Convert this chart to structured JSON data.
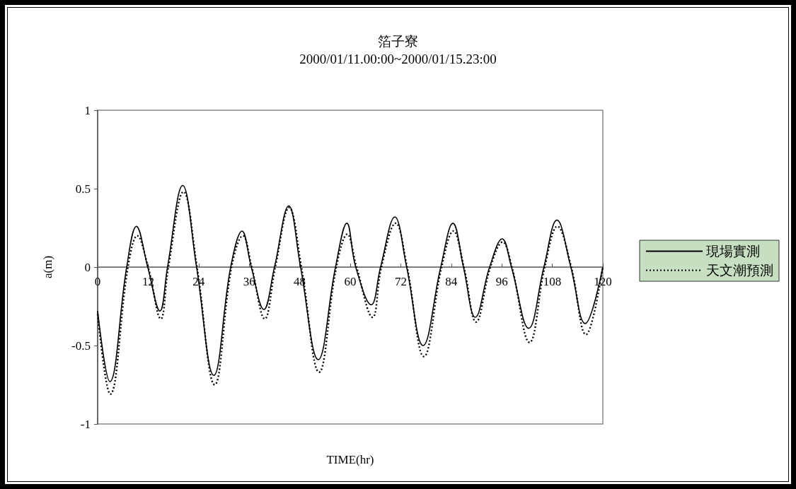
{
  "chart_data": {
    "type": "line",
    "title": "箔子寮",
    "subtitle": "2000/01/11.00:00~2000/01/15.23:00",
    "xlabel": "TIME(hr)",
    "ylabel": "a(m)",
    "xlim": [
      0,
      120
    ],
    "xticks": [
      0,
      12,
      24,
      36,
      48,
      60,
      72,
      84,
      96,
      108,
      120
    ],
    "ylim": [
      -1,
      1
    ],
    "yticks": [
      -1,
      -0.5,
      0,
      0.5,
      1
    ],
    "grid": false,
    "legend": "right",
    "marker": "none",
    "series": [
      {
        "name": "現場實測",
        "color": "#000000",
        "line_style": "solid",
        "x": [
          0,
          2.9,
          6.9,
          9.2,
          11.9,
          14.8,
          16.6,
          20.2,
          23.5,
          27.6,
          31.6,
          34.3,
          36.5,
          39.5,
          42,
          45.4,
          48.2,
          52.4,
          56.5,
          59.2,
          61.3,
          65,
          67.2,
          70.6,
          73.4,
          77.3,
          81.5,
          84.4,
          86.9,
          89.7,
          93.1,
          96.1,
          98.3,
          102.4,
          106,
          109.1,
          112.4,
          115.8,
          120
        ],
        "values": [
          -0.28,
          -0.73,
          0,
          0.26,
          0,
          -0.28,
          0,
          0.52,
          0,
          -0.69,
          0,
          0.23,
          0,
          -0.27,
          0,
          0.39,
          0,
          -0.59,
          0,
          0.28,
          0,
          -0.24,
          0,
          0.32,
          0,
          -0.5,
          0,
          0.28,
          0,
          -0.32,
          0,
          0.18,
          0,
          -0.39,
          0,
          0.3,
          0,
          -0.36,
          0
        ]
      },
      {
        "name": "天文潮預測",
        "color": "#000000",
        "line_style": "dotted",
        "x": [
          0,
          3.0,
          7.2,
          9.4,
          12.0,
          15.0,
          16.8,
          20.4,
          23.6,
          27.8,
          31.8,
          34.5,
          36.6,
          39.7,
          42.2,
          45.5,
          48.4,
          52.6,
          56.7,
          59.3,
          61.5,
          65.3,
          67.4,
          70.8,
          73.5,
          77.5,
          81.7,
          84.5,
          87.0,
          89.9,
          93.3,
          96.2,
          98.4,
          102.6,
          106.2,
          109.2,
          112.5,
          116.0,
          120
        ],
        "values": [
          -0.3,
          -0.81,
          0,
          0.2,
          0,
          -0.33,
          0,
          0.48,
          0,
          -0.75,
          0,
          0.2,
          0,
          -0.33,
          0,
          0.38,
          0,
          -0.67,
          0,
          0.21,
          0,
          -0.32,
          0,
          0.28,
          0,
          -0.57,
          0,
          0.23,
          0,
          -0.35,
          0,
          0.16,
          0,
          -0.48,
          0,
          0.26,
          0,
          -0.43,
          0
        ]
      }
    ]
  }
}
